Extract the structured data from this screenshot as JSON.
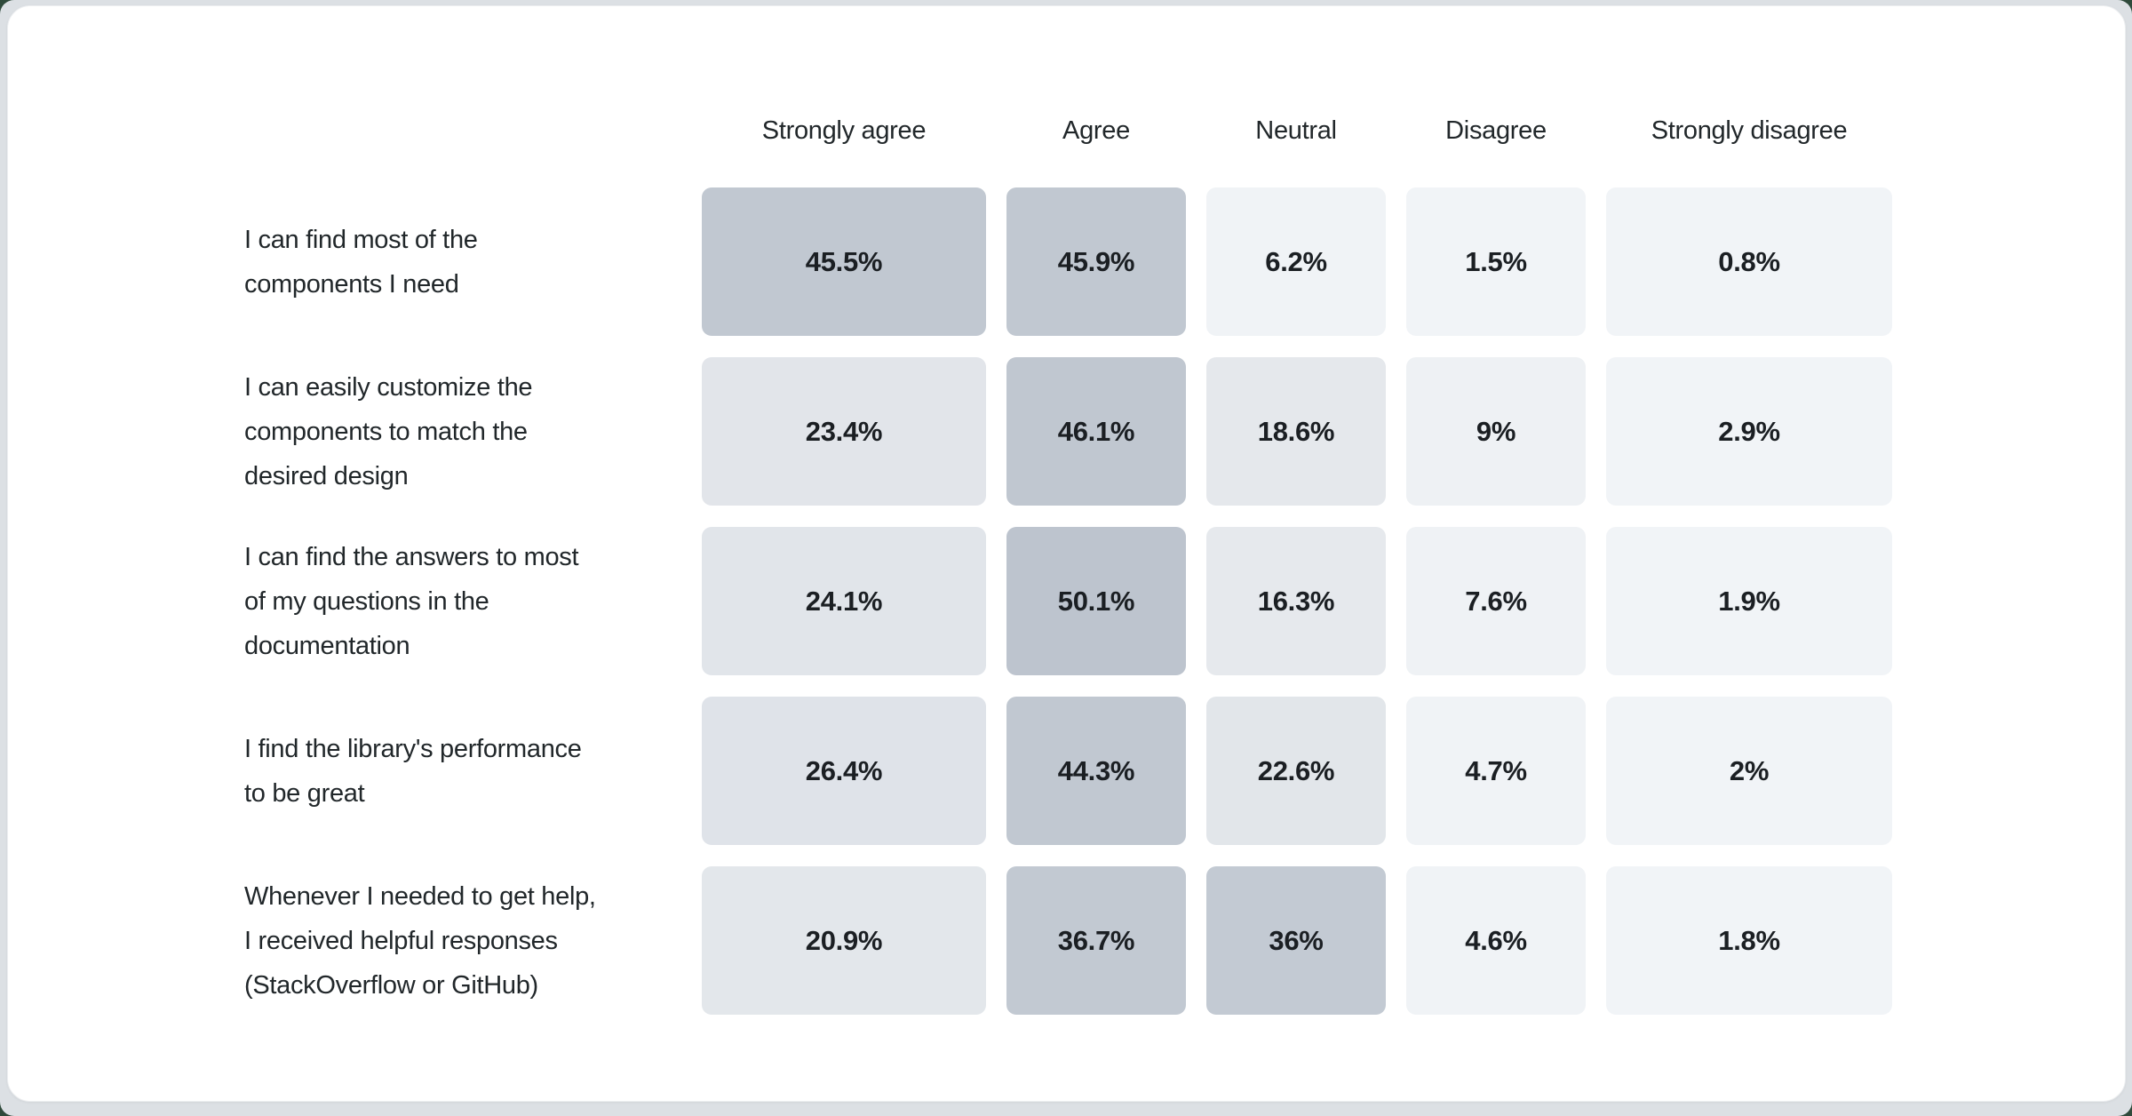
{
  "page": {
    "background_color": "#2f4a3b",
    "frame_color": "#dce0e4",
    "card_color": "#ffffff"
  },
  "chart_data": {
    "type": "heatmap",
    "title": "",
    "legend_position": "none",
    "grid": false,
    "columns": [
      "Strongly agree",
      "Agree",
      "Neutral",
      "Disagree",
      "Strongly disagree"
    ],
    "questions": [
      "I can find most of the\ncomponents I need",
      "I can easily customize the\ncomponents to match the\ndesired design",
      "I can find the answers to most\nof my questions in the\ndocumentation",
      "I find the library's performance\nto be great",
      "Whenever I needed to get help,\nI received helpful responses\n(StackOverflow or GitHub)"
    ],
    "values": [
      [
        45.5,
        45.9,
        6.2,
        1.5,
        0.8
      ],
      [
        23.4,
        46.1,
        18.6,
        9,
        2.9
      ],
      [
        24.1,
        50.1,
        16.3,
        7.6,
        1.9
      ],
      [
        26.4,
        44.3,
        22.6,
        4.7,
        2
      ],
      [
        20.9,
        36.7,
        36,
        4.6,
        1.8
      ]
    ],
    "value_labels": [
      [
        "45.5%",
        "45.9%",
        "6.2%",
        "1.5%",
        "0.8%"
      ],
      [
        "23.4%",
        "46.1%",
        "18.6%",
        "9%",
        "2.9%"
      ],
      [
        "24.1%",
        "50.1%",
        "16.3%",
        "7.6%",
        "1.9%"
      ],
      [
        "26.4%",
        "44.3%",
        "22.6%",
        "4.7%",
        "2%"
      ],
      [
        "20.9%",
        "36.7%",
        "36%",
        "4.6%",
        "1.8%"
      ]
    ],
    "cell_colors": [
      [
        "#c1c8d1",
        "#c1c8d1",
        "#f0f3f6",
        "#f1f4f7",
        "#f1f4f7"
      ],
      [
        "#e2e5ea",
        "#c0c7d0",
        "#e5e8ec",
        "#eef1f4",
        "#f1f4f7"
      ],
      [
        "#e1e5ea",
        "#bdc4ce",
        "#e6e9ed",
        "#eff2f5",
        "#f1f4f7"
      ],
      [
        "#dfe3e9",
        "#c1c8d1",
        "#e2e6ea",
        "#f0f3f6",
        "#f1f4f7"
      ],
      [
        "#e3e7eb",
        "#c2c9d2",
        "#c3cad3",
        "#f0f3f6",
        "#f1f4f7"
      ]
    ],
    "color_scale": {
      "light": "#f1f4f7",
      "dark": "#bdc4ce",
      "domain": [
        0,
        50.1
      ]
    }
  }
}
